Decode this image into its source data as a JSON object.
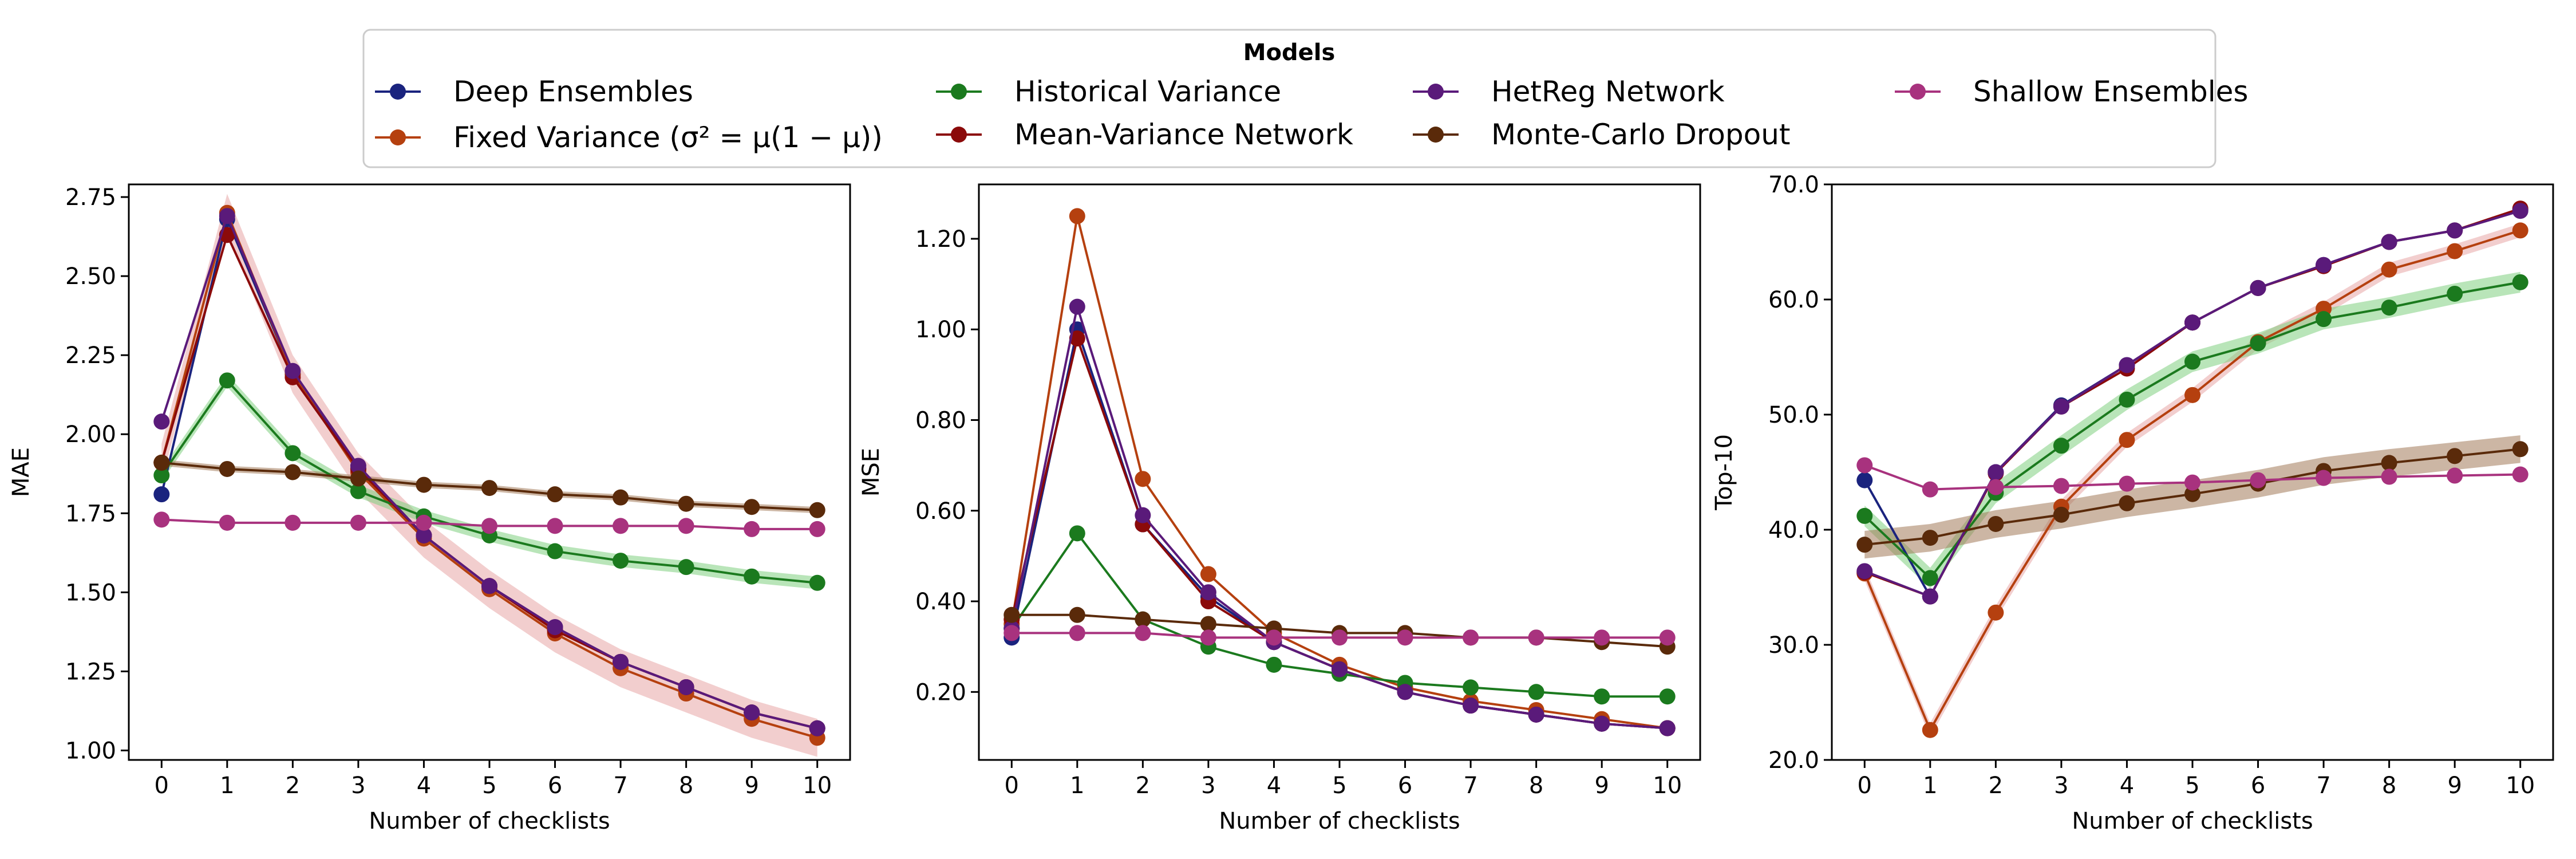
{
  "legend": {
    "title": "Models",
    "location": "upper-center"
  },
  "chart_data": {
    "type": "line",
    "x": [
      0,
      1,
      2,
      3,
      4,
      5,
      6,
      7,
      8,
      9,
      10
    ],
    "xlabel": "Number of checklists",
    "series_styles": [
      {
        "name": "Deep Ensembles",
        "color": "#1a237e"
      },
      {
        "name": "Fixed Variance (σ² = μ(1 − μ))",
        "color": "#b5400f"
      },
      {
        "name": "Historical Variance",
        "color": "#1b7a1e"
      },
      {
        "name": "Mean-Variance Network",
        "color": "#8b0a0a"
      },
      {
        "name": "HetReg Network",
        "color": "#5a1a7a"
      },
      {
        "name": "Monte-Carlo Dropout",
        "color": "#5a2a0a"
      },
      {
        "name": "Shallow Ensembles",
        "color": "#a8327e"
      }
    ],
    "band_colors": {
      "Historical Variance": "#7fd07f",
      "Fixed Variance (σ² = μ(1 − μ))": "#e8a5a5",
      "Monte-Carlo Dropout": "#a37a5a",
      "Shallow Ensembles": "#d9a0c8"
    },
    "panels": [
      {
        "ylabel": "MAE",
        "ylim": [
          0.97,
          2.79
        ],
        "yticks": [
          1.0,
          1.25,
          1.5,
          1.75,
          2.0,
          2.25,
          2.5,
          2.75
        ],
        "ytick_labels": [
          "1.00",
          "1.25",
          "1.50",
          "1.75",
          "2.00",
          "2.25",
          "2.50",
          "2.75"
        ],
        "series": [
          {
            "name": "Deep Ensembles",
            "values": [
              1.81,
              2.68,
              2.19,
              1.89,
              1.68,
              1.52,
              1.39,
              1.28,
              1.2,
              1.12,
              1.07
            ]
          },
          {
            "name": "Fixed Variance (σ² = μ(1 − μ))",
            "values": [
              1.91,
              2.7,
              2.19,
              1.88,
              1.67,
              1.51,
              1.37,
              1.26,
              1.18,
              1.1,
              1.04
            ],
            "band": 0.06
          },
          {
            "name": "Historical Variance",
            "values": [
              1.87,
              2.17,
              1.94,
              1.82,
              1.74,
              1.68,
              1.63,
              1.6,
              1.58,
              1.55,
              1.53
            ],
            "band": 0.02
          },
          {
            "name": "Mean-Variance Network",
            "values": [
              1.91,
              2.63,
              2.18,
              1.89,
              1.68,
              1.52,
              1.38,
              1.28,
              1.2,
              1.12,
              1.07
            ]
          },
          {
            "name": "HetReg Network",
            "values": [
              2.04,
              2.69,
              2.2,
              1.9,
              1.68,
              1.52,
              1.39,
              1.28,
              1.2,
              1.12,
              1.07
            ]
          },
          {
            "name": "Monte-Carlo Dropout",
            "values": [
              1.91,
              1.89,
              1.88,
              1.86,
              1.84,
              1.83,
              1.81,
              1.8,
              1.78,
              1.77,
              1.76
            ],
            "band": 0.01
          },
          {
            "name": "Shallow Ensembles",
            "values": [
              1.73,
              1.72,
              1.72,
              1.72,
              1.72,
              1.71,
              1.71,
              1.71,
              1.71,
              1.7,
              1.7
            ]
          }
        ]
      },
      {
        "ylabel": "MSE",
        "ylim": [
          0.05,
          1.32
        ],
        "yticks": [
          0.2,
          0.4,
          0.6,
          0.8,
          1.0,
          1.2
        ],
        "ytick_labels": [
          "0.20",
          "0.40",
          "0.60",
          "0.80",
          "1.00",
          "1.20"
        ],
        "series": [
          {
            "name": "Deep Ensembles",
            "values": [
              0.32,
              1.0,
              0.57,
              0.41,
              0.31,
              0.25,
              0.2,
              0.17,
              0.15,
              0.13,
              0.12
            ]
          },
          {
            "name": "Fixed Variance (σ² = μ(1 − μ))",
            "values": [
              0.35,
              1.25,
              0.67,
              0.46,
              0.33,
              0.26,
              0.21,
              0.18,
              0.16,
              0.14,
              0.12
            ]
          },
          {
            "name": "Historical Variance",
            "values": [
              0.34,
              0.55,
              0.36,
              0.3,
              0.26,
              0.24,
              0.22,
              0.21,
              0.2,
              0.19,
              0.19
            ]
          },
          {
            "name": "Mean-Variance Network",
            "values": [
              0.36,
              0.98,
              0.57,
              0.4,
              0.31,
              0.25,
              0.2,
              0.17,
              0.15,
              0.13,
              0.12
            ]
          },
          {
            "name": "HetReg Network",
            "values": [
              0.34,
              1.05,
              0.59,
              0.42,
              0.31,
              0.25,
              0.2,
              0.17,
              0.15,
              0.13,
              0.12
            ]
          },
          {
            "name": "Monte-Carlo Dropout",
            "values": [
              0.37,
              0.37,
              0.36,
              0.35,
              0.34,
              0.33,
              0.33,
              0.32,
              0.32,
              0.31,
              0.3
            ]
          },
          {
            "name": "Shallow Ensembles",
            "values": [
              0.33,
              0.33,
              0.33,
              0.32,
              0.32,
              0.32,
              0.32,
              0.32,
              0.32,
              0.32,
              0.32
            ]
          }
        ]
      },
      {
        "ylabel": "Top-10",
        "ylim": [
          20,
          70
        ],
        "yticks": [
          20,
          30,
          40,
          50,
          60,
          70
        ],
        "ytick_labels": [
          "20.0",
          "30.0",
          "40.0",
          "50.0",
          "60.0",
          "70.0"
        ],
        "series": [
          {
            "name": "Deep Ensembles",
            "values": [
              44.3,
              34.2,
              45.0,
              50.8,
              54.3,
              58.0,
              61.0,
              63.0,
              65.0,
              66.0,
              67.8
            ]
          },
          {
            "name": "Fixed Variance (σ² = μ(1 − μ))",
            "values": [
              36.2,
              22.6,
              32.8,
              42.0,
              47.8,
              51.7,
              56.3,
              59.2,
              62.6,
              64.2,
              66.0
            ],
            "band": 0.6
          },
          {
            "name": "Historical Variance",
            "values": [
              41.2,
              35.8,
              43.2,
              47.3,
              51.3,
              54.6,
              56.2,
              58.3,
              59.3,
              60.5,
              61.5
            ],
            "band": 0.9
          },
          {
            "name": "Mean-Variance Network",
            "values": [
              36.3,
              34.2,
              44.9,
              50.7,
              54.0,
              58.0,
              61.0,
              62.9,
              65.0,
              66.0,
              67.9
            ]
          },
          {
            "name": "HetReg Network",
            "values": [
              36.4,
              34.2,
              45.0,
              50.7,
              54.3,
              58.0,
              61.0,
              63.0,
              65.0,
              66.0,
              67.7
            ]
          },
          {
            "name": "Monte-Carlo Dropout",
            "values": [
              38.7,
              39.3,
              40.5,
              41.3,
              42.3,
              43.1,
              44.0,
              45.1,
              45.8,
              46.4,
              47.0
            ],
            "band": 1.2
          },
          {
            "name": "Shallow Ensembles",
            "values": [
              45.6,
              43.5,
              43.7,
              43.8,
              44.0,
              44.1,
              44.3,
              44.5,
              44.6,
              44.7,
              44.8
            ]
          }
        ]
      }
    ]
  }
}
